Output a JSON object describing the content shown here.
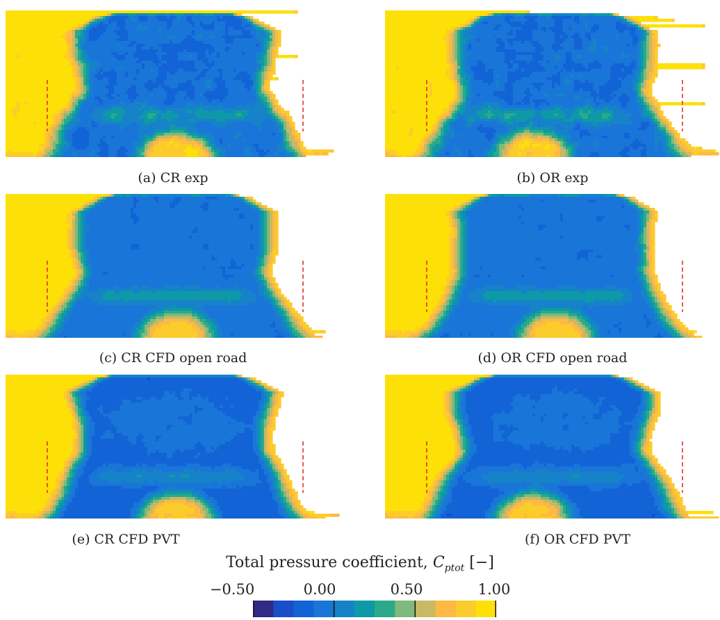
{
  "panels": [
    {
      "id": "a",
      "caption": "(a) CR exp",
      "source": "exp",
      "floor_asym": 0
    },
    {
      "id": "b",
      "caption": "(b) OR exp",
      "source": "exp",
      "floor_asym": 1
    },
    {
      "id": "c",
      "caption": "(c) CR CFD open road",
      "source": "cfd_open",
      "floor_asym": 0
    },
    {
      "id": "d",
      "caption": "(d) OR CFD open road",
      "source": "cfd_open",
      "floor_asym": 0
    },
    {
      "id": "e",
      "caption": "(e) CR CFD PVT",
      "source": "cfd_pvt",
      "floor_asym": 0
    },
    {
      "id": "f",
      "caption": "(f) OR CFD PVT",
      "source": "cfd_pvt",
      "floor_asym": 1
    }
  ],
  "colorbar": {
    "title": "Total pressure coefficient, ",
    "symbol": "C",
    "symbol_sub": "ptot",
    "unit": " [−]",
    "ticks": [
      {
        "label": "−0.50",
        "value": -0.5
      },
      {
        "label": "0.00",
        "value": 0.0
      },
      {
        "label": "0.50",
        "value": 0.5
      },
      {
        "label": "1.00",
        "value": 1.0
      }
    ],
    "min": -0.5,
    "max": 1.0,
    "levels": [
      {
        "from": -0.5,
        "to": -0.375,
        "color": "#2e2a86"
      },
      {
        "from": -0.375,
        "to": -0.25,
        "color": "#1a4dc8"
      },
      {
        "from": -0.25,
        "to": -0.125,
        "color": "#1264d6"
      },
      {
        "from": -0.125,
        "to": 0.0,
        "color": "#1976d8"
      },
      {
        "from": 0.0,
        "to": 0.125,
        "color": "#1683c8"
      },
      {
        "from": 0.125,
        "to": 0.25,
        "color": "#0d9aa6"
      },
      {
        "from": 0.25,
        "to": 0.375,
        "color": "#2aaa8a"
      },
      {
        "from": 0.375,
        "to": 0.5,
        "color": "#7fb97c"
      },
      {
        "from": 0.5,
        "to": 0.625,
        "color": "#c9b864"
      },
      {
        "from": 0.625,
        "to": 0.75,
        "color": "#fcb943"
      },
      {
        "from": 0.75,
        "to": 0.875,
        "color": "#fccb2c"
      },
      {
        "from": 0.875,
        "to": 1.0,
        "color": "#fde007"
      }
    ]
  },
  "chart_data": {
    "type": "heatmap",
    "quantity": "Total pressure coefficient",
    "symbol": "C_ptot",
    "unit": "[−]",
    "range": [
      -0.5,
      1.0
    ],
    "ticks": [
      -0.5,
      0.0,
      0.5,
      1.0
    ],
    "panels": [
      "(a) CR exp",
      "(b) OR exp",
      "(c) CR CFD open road",
      "(d) OR CFD open road",
      "(e) CR CFD PVT",
      "(f) OR CFD PVT"
    ],
    "contour_levels": [
      -0.5,
      -0.375,
      -0.25,
      -0.125,
      0.0,
      0.125,
      0.25,
      0.375,
      0.5,
      0.625,
      0.75,
      0.875,
      1.0
    ],
    "approx_values": {
      "freestream": 1.0,
      "wake_core_exp": -0.1,
      "wake_core_cfd_open_road": -0.1,
      "wake_core_cfd_pvt": -0.2,
      "underbody_jet": 0.8
    },
    "marker": {
      "type": "dashed-line",
      "color": "#e0312a",
      "description": "red dashed vertical lines either side of the wake"
    }
  }
}
